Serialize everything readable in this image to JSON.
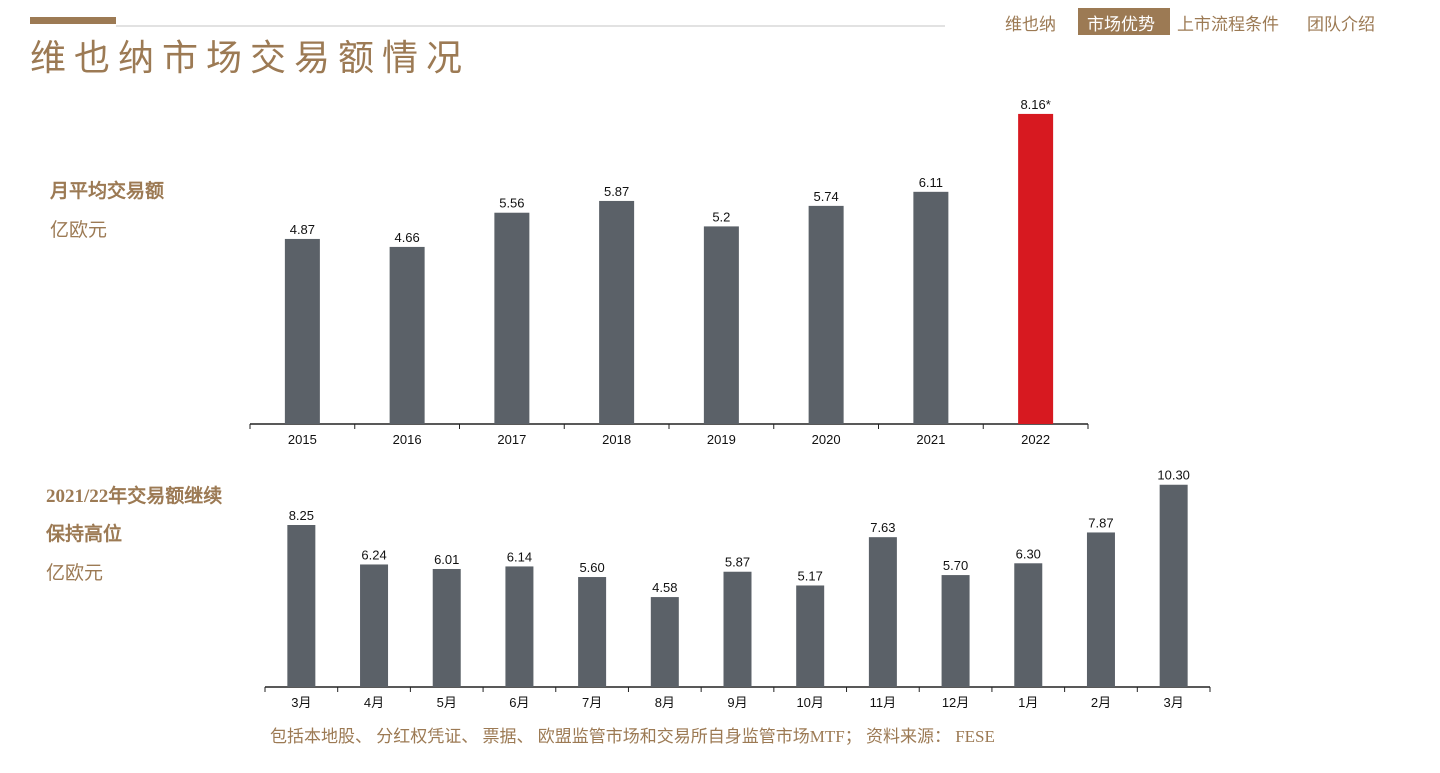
{
  "header": {
    "title": "维也纳市场交易额情况",
    "nav": [
      "维也纳",
      "市场优势",
      "上市流程条件",
      "团队介绍"
    ],
    "active_nav": 1
  },
  "chart_data": [
    {
      "type": "bar",
      "title": [
        "月平均交易额"
      ],
      "y_label": "亿欧元",
      "categories": [
        "2015",
        "2016",
        "2017",
        "2018",
        "2019",
        "2020",
        "2021",
        "2022"
      ],
      "values": [
        4.87,
        4.66,
        5.56,
        5.87,
        5.2,
        5.74,
        6.11,
        8.16
      ],
      "value_labels": [
        "4.87",
        "4.66",
        "5.56",
        "5.87",
        "5.2",
        "5.74",
        "6.11",
        "8.16*"
      ],
      "colors": [
        "#5b6168",
        "#5b6168",
        "#5b6168",
        "#5b6168",
        "#5b6168",
        "#5b6168",
        "#5b6168",
        "#d71920"
      ],
      "ylim": [
        0,
        9
      ]
    },
    {
      "type": "bar",
      "title": [
        "2021/22年交易额继续",
        "保持高位"
      ],
      "y_label": "亿欧元",
      "categories": [
        "3月",
        "4月",
        "5月",
        "6月",
        "7月",
        "8月",
        "9月",
        "10月",
        "11月",
        "12月",
        "1月",
        "2月",
        "3月"
      ],
      "values": [
        8.25,
        6.24,
        6.01,
        6.14,
        5.6,
        4.58,
        5.87,
        5.17,
        7.63,
        5.7,
        6.3,
        7.87,
        10.3
      ],
      "value_labels": [
        "8.25",
        "6.24",
        "6.01",
        "6.14",
        "5.60",
        "4.58",
        "5.87",
        "5.17",
        "7.63",
        "5.70",
        "6.30",
        "7.87",
        "10.30"
      ],
      "colors": [
        "#5b6168",
        "#5b6168",
        "#5b6168",
        "#5b6168",
        "#5b6168",
        "#5b6168",
        "#5b6168",
        "#5b6168",
        "#5b6168",
        "#5b6168",
        "#5b6168",
        "#5b6168",
        "#5b6168"
      ],
      "ylim": [
        0,
        11
      ]
    }
  ],
  "footer": "包括本地股、 分红权凭证、 票据、 欧盟监管市场和交易所自身监管市场MTF； 资料来源： FESE"
}
